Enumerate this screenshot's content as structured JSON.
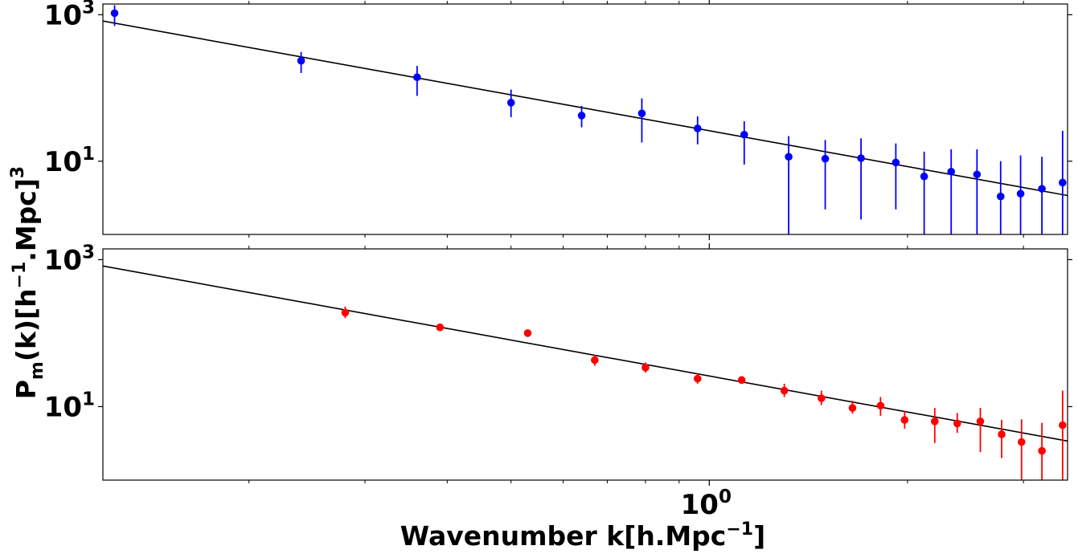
{
  "chart_data": [
    {
      "type": "scatter",
      "panel": "top",
      "x_scale": "log",
      "y_scale": "log",
      "xlim": [
        0.12,
        3.5
      ],
      "ylim": [
        1.0,
        1400
      ],
      "y_ticks": [
        {
          "base": "10",
          "exp": "3"
        },
        {
          "base": "10",
          "exp": "1"
        }
      ],
      "marker_color": "#0000ff",
      "line_color": "#000000",
      "model_line": {
        "x": [
          0.12,
          3.5
        ],
        "y": [
          820,
          3.4
        ]
      },
      "points": [
        {
          "x": 0.125,
          "y": 1050,
          "lo": 700,
          "hi": 1350
        },
        {
          "x": 0.24,
          "y": 235,
          "lo": 160,
          "hi": 310
        },
        {
          "x": 0.36,
          "y": 140,
          "lo": 78,
          "hi": 200
        },
        {
          "x": 0.5,
          "y": 63,
          "lo": 40,
          "hi": 95
        },
        {
          "x": 0.64,
          "y": 42,
          "lo": 29,
          "hi": 57
        },
        {
          "x": 0.79,
          "y": 45,
          "lo": 18,
          "hi": 72
        },
        {
          "x": 0.96,
          "y": 28,
          "lo": 17,
          "hi": 41
        },
        {
          "x": 1.13,
          "y": 23,
          "lo": 9,
          "hi": 35
        },
        {
          "x": 1.32,
          "y": 11.5,
          "lo": 1.0,
          "hi": 22
        },
        {
          "x": 1.5,
          "y": 10.8,
          "lo": 2.2,
          "hi": 19.5
        },
        {
          "x": 1.7,
          "y": 11.0,
          "lo": 1.6,
          "hi": 20.5
        },
        {
          "x": 1.92,
          "y": 9.6,
          "lo": 2.2,
          "hi": 17.5
        },
        {
          "x": 2.12,
          "y": 6.2,
          "lo": 1.0,
          "hi": 13.5
        },
        {
          "x": 2.33,
          "y": 7.2,
          "lo": 1.0,
          "hi": 14.5
        },
        {
          "x": 2.55,
          "y": 6.6,
          "lo": 1.0,
          "hi": 14.5
        },
        {
          "x": 2.77,
          "y": 3.3,
          "lo": 1.0,
          "hi": 10.0
        },
        {
          "x": 2.97,
          "y": 3.6,
          "lo": 1.0,
          "hi": 12.0
        },
        {
          "x": 3.2,
          "y": 4.2,
          "lo": 1.0,
          "hi": 11.5
        },
        {
          "x": 3.44,
          "y": 5.1,
          "lo": 1.0,
          "hi": 26.0
        }
      ]
    },
    {
      "type": "scatter",
      "panel": "bottom",
      "x_scale": "log",
      "y_scale": "log",
      "xlim": [
        0.12,
        3.5
      ],
      "ylim": [
        1.0,
        1400
      ],
      "y_ticks": [
        {
          "base": "10",
          "exp": "3"
        },
        {
          "base": "10",
          "exp": "1"
        }
      ],
      "x_ticks": [
        {
          "base": "10",
          "exp": "0"
        }
      ],
      "marker_color": "#ff0000",
      "line_color": "#000000",
      "model_line": {
        "x": [
          0.12,
          3.5
        ],
        "y": [
          820,
          3.4
        ]
      },
      "points": [
        {
          "x": 0.28,
          "y": 190,
          "lo": 160,
          "hi": 230
        },
        {
          "x": 0.39,
          "y": 120,
          "lo": 108,
          "hi": 132
        },
        {
          "x": 0.53,
          "y": 100,
          "lo": 93,
          "hi": 108
        },
        {
          "x": 0.67,
          "y": 43,
          "lo": 36,
          "hi": 51
        },
        {
          "x": 0.8,
          "y": 34,
          "lo": 29,
          "hi": 40
        },
        {
          "x": 0.96,
          "y": 24,
          "lo": 20.5,
          "hi": 28
        },
        {
          "x": 1.12,
          "y": 23,
          "lo": 20.5,
          "hi": 26
        },
        {
          "x": 1.3,
          "y": 16.5,
          "lo": 13.5,
          "hi": 20.5
        },
        {
          "x": 1.48,
          "y": 13,
          "lo": 10.5,
          "hi": 16.5
        },
        {
          "x": 1.65,
          "y": 9.6,
          "lo": 8.0,
          "hi": 12.0
        },
        {
          "x": 1.82,
          "y": 10.3,
          "lo": 7.5,
          "hi": 13.5
        },
        {
          "x": 1.98,
          "y": 6.6,
          "lo": 5.0,
          "hi": 8.8
        },
        {
          "x": 2.2,
          "y": 6.3,
          "lo": 3.2,
          "hi": 9.6
        },
        {
          "x": 2.38,
          "y": 5.9,
          "lo": 4.4,
          "hi": 8.2
        },
        {
          "x": 2.58,
          "y": 6.3,
          "lo": 2.4,
          "hi": 9.6
        },
        {
          "x": 2.78,
          "y": 4.2,
          "lo": 2.0,
          "hi": 6.6
        },
        {
          "x": 2.98,
          "y": 3.3,
          "lo": 1.0,
          "hi": 6.7
        },
        {
          "x": 3.2,
          "y": 2.5,
          "lo": 1.0,
          "hi": 6.0
        },
        {
          "x": 3.44,
          "y": 5.6,
          "lo": 1.0,
          "hi": 16.5
        }
      ]
    }
  ],
  "labels": {
    "ylabel": {
      "p": "P",
      "m_sub": "m",
      "mid": "(k)[h",
      "minus1": "−1",
      "tail": ".Mpc]",
      "cube": "3"
    },
    "xlabel": {
      "main": "Wavenumber k[h.Mpc",
      "minus1": "−1",
      "close": "]"
    }
  }
}
